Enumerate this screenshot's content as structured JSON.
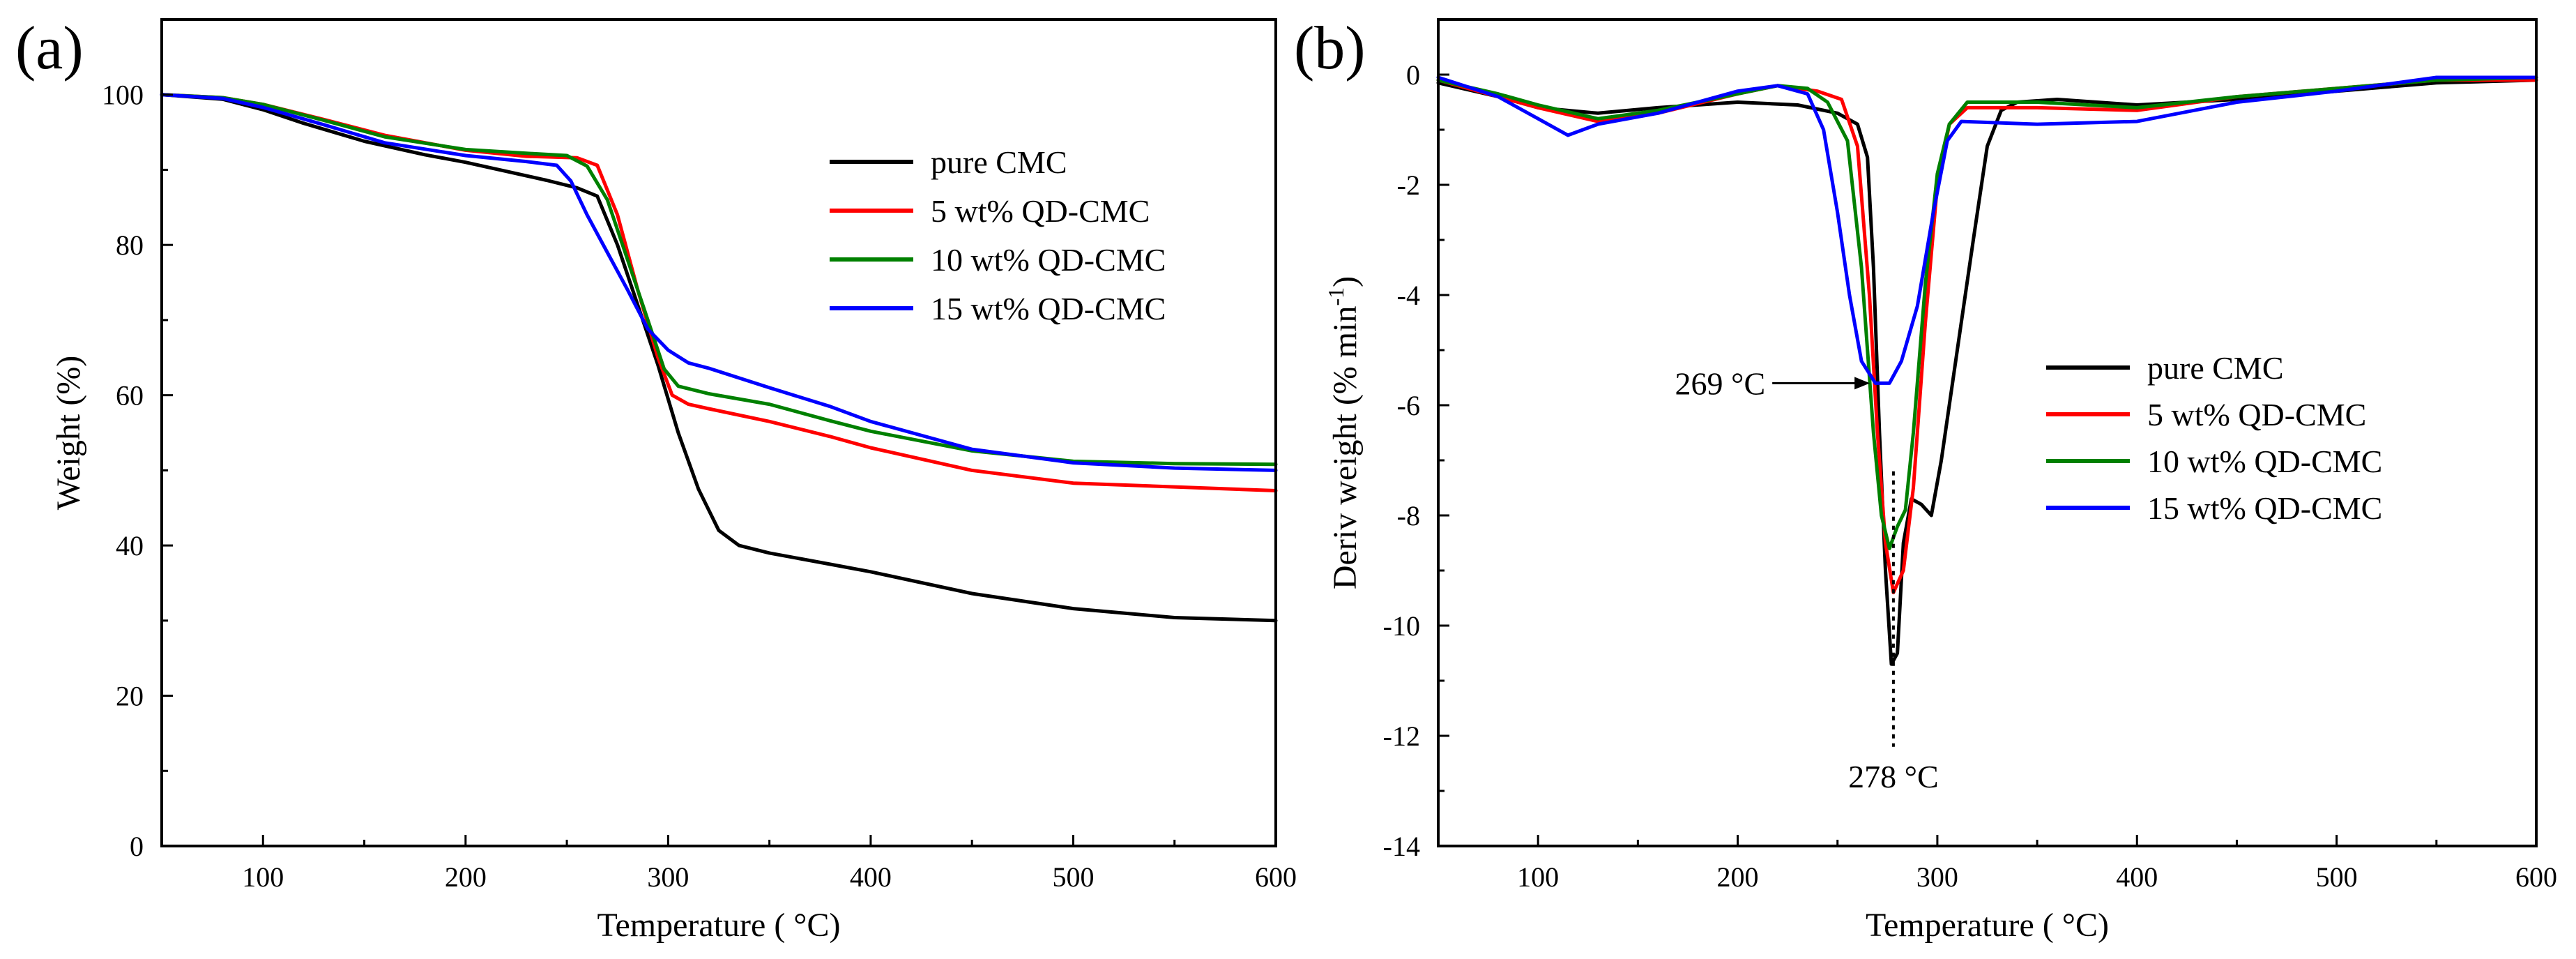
{
  "chart_data": [
    {
      "panel_label": "(a)",
      "type": "line",
      "title": "",
      "xlabel": "Temperature ( °C)",
      "ylabel": "Weight (%)",
      "xlim": [
        50,
        600
      ],
      "ylim": [
        0,
        110
      ],
      "x_ticks": [
        100,
        200,
        300,
        400,
        500,
        600
      ],
      "x_tick_labels": [
        "100",
        "200",
        "300",
        "400",
        "500",
        "600"
      ],
      "y_ticks": [
        0,
        20,
        40,
        60,
        80,
        100
      ],
      "y_tick_labels": [
        "0",
        "20",
        "40",
        "60",
        "80",
        "100"
      ],
      "legend_position": "center-right",
      "series": [
        {
          "name": "pure CMC",
          "color": "#000000",
          "points": [
            [
              50,
              100
            ],
            [
              80,
              99.4
            ],
            [
              100,
              98
            ],
            [
              120,
              96.2
            ],
            [
              150,
              93.8
            ],
            [
              180,
              92
            ],
            [
              200,
              91
            ],
            [
              220,
              89.8
            ],
            [
              240,
              88.6
            ],
            [
              255,
              87.6
            ],
            [
              265,
              86.5
            ],
            [
              275,
              80
            ],
            [
              285,
              72
            ],
            [
              295,
              64
            ],
            [
              305,
              55
            ],
            [
              315,
              47.5
            ],
            [
              325,
              42
            ],
            [
              335,
              40
            ],
            [
              350,
              39
            ],
            [
              380,
              37.5
            ],
            [
              400,
              36.5
            ],
            [
              450,
              33.6
            ],
            [
              500,
              31.6
            ],
            [
              550,
              30.4
            ],
            [
              600,
              30
            ]
          ]
        },
        {
          "name": "5 wt% QD-CMC",
          "color": "#ff0000",
          "points": [
            [
              50,
              100
            ],
            [
              80,
              99.6
            ],
            [
              100,
              98.7
            ],
            [
              130,
              96.7
            ],
            [
              160,
              94.6
            ],
            [
              200,
              92.6
            ],
            [
              230,
              91.8
            ],
            [
              255,
              91.6
            ],
            [
              265,
              90.6
            ],
            [
              275,
              84
            ],
            [
              285,
              74
            ],
            [
              295,
              65
            ],
            [
              302,
              60
            ],
            [
              310,
              58.8
            ],
            [
              320,
              58.2
            ],
            [
              350,
              56.5
            ],
            [
              380,
              54.5
            ],
            [
              400,
              53
            ],
            [
              450,
              50
            ],
            [
              500,
              48.3
            ],
            [
              550,
              47.8
            ],
            [
              600,
              47.3
            ]
          ]
        },
        {
          "name": "10 wt% QD-CMC",
          "color": "#008000",
          "points": [
            [
              50,
              100
            ],
            [
              80,
              99.6
            ],
            [
              100,
              98.7
            ],
            [
              130,
              96.6
            ],
            [
              160,
              94.4
            ],
            [
              200,
              92.7
            ],
            [
              230,
              92.2
            ],
            [
              250,
              91.9
            ],
            [
              260,
              90.5
            ],
            [
              270,
              86
            ],
            [
              280,
              78
            ],
            [
              290,
              70
            ],
            [
              298,
              63.5
            ],
            [
              305,
              61.2
            ],
            [
              320,
              60.2
            ],
            [
              350,
              58.8
            ],
            [
              380,
              56.6
            ],
            [
              400,
              55.2
            ],
            [
              450,
              52.6
            ],
            [
              500,
              51.2
            ],
            [
              550,
              50.9
            ],
            [
              600,
              50.8
            ]
          ]
        },
        {
          "name": "15 wt% QD-CMC",
          "color": "#0000ff",
          "points": [
            [
              50,
              100
            ],
            [
              80,
              99.5
            ],
            [
              100,
              98.3
            ],
            [
              130,
              96
            ],
            [
              160,
              93.6
            ],
            [
              200,
              91.9
            ],
            [
              230,
              91.1
            ],
            [
              245,
              90.6
            ],
            [
              252,
              88.5
            ],
            [
              260,
              84
            ],
            [
              270,
              79
            ],
            [
              280,
              74
            ],
            [
              290,
              68.8
            ],
            [
              300,
              66
            ],
            [
              310,
              64.3
            ],
            [
              320,
              63.6
            ],
            [
              350,
              61
            ],
            [
              380,
              58.5
            ],
            [
              400,
              56.5
            ],
            [
              450,
              52.8
            ],
            [
              500,
              51
            ],
            [
              550,
              50.3
            ],
            [
              600,
              50
            ]
          ]
        }
      ]
    },
    {
      "panel_label": "(b)",
      "type": "line",
      "title": "",
      "xlabel": "Temperature ( °C)",
      "ylabel": "Deriv weight (% min",
      "ylabel_superscript": "-1",
      "ylabel_close": ")",
      "xlim": [
        50,
        600
      ],
      "ylim": [
        -14,
        1
      ],
      "x_ticks": [
        100,
        200,
        300,
        400,
        500,
        600
      ],
      "x_tick_labels": [
        "100",
        "200",
        "300",
        "400",
        "500",
        "600"
      ],
      "y_ticks": [
        0,
        -2,
        -4,
        -6,
        -8,
        -10,
        -12,
        -14
      ],
      "y_tick_labels": [
        "0",
        "-2",
        "-4",
        "-6",
        "-8",
        "-10",
        "-12",
        "-14"
      ],
      "legend_position": "center-right",
      "annotations": [
        {
          "text": "269 °C",
          "at": [
            269,
            -5.6
          ],
          "kind": "arrow-left"
        },
        {
          "text": "278 °C",
          "at": [
            278,
            -10.8
          ],
          "kind": "dotted-vertical",
          "from_y": -7.2,
          "to_y": -12.2
        }
      ],
      "series": [
        {
          "name": "pure CMC",
          "color": "#000000",
          "points": [
            [
              50,
              -0.15
            ],
            [
              80,
              -0.4
            ],
            [
              100,
              -0.6
            ],
            [
              130,
              -0.7
            ],
            [
              160,
              -0.6
            ],
            [
              200,
              -0.5
            ],
            [
              230,
              -0.55
            ],
            [
              250,
              -0.7
            ],
            [
              260,
              -0.9
            ],
            [
              265,
              -1.5
            ],
            [
              268,
              -3.5
            ],
            [
              271,
              -6.5
            ],
            [
              274,
              -9
            ],
            [
              277,
              -10.7
            ],
            [
              280,
              -10.5
            ],
            [
              283,
              -8.5
            ],
            [
              287,
              -7.7
            ],
            [
              292,
              -7.8
            ],
            [
              297,
              -8
            ],
            [
              302,
              -7
            ],
            [
              310,
              -5
            ],
            [
              318,
              -3
            ],
            [
              325,
              -1.3
            ],
            [
              332,
              -0.65
            ],
            [
              340,
              -0.5
            ],
            [
              360,
              -0.45
            ],
            [
              400,
              -0.55
            ],
            [
              450,
              -0.45
            ],
            [
              500,
              -0.3
            ],
            [
              550,
              -0.15
            ],
            [
              600,
              -0.1
            ]
          ]
        },
        {
          "name": "5 wt% QD-CMC",
          "color": "#ff0000",
          "points": [
            [
              50,
              -0.1
            ],
            [
              80,
              -0.4
            ],
            [
              100,
              -0.6
            ],
            [
              130,
              -0.85
            ],
            [
              160,
              -0.7
            ],
            [
              200,
              -0.35
            ],
            [
              220,
              -0.2
            ],
            [
              240,
              -0.3
            ],
            [
              252,
              -0.45
            ],
            [
              260,
              -1.3
            ],
            [
              266,
              -4
            ],
            [
              270,
              -6.5
            ],
            [
              274,
              -8.5
            ],
            [
              278,
              -9.4
            ],
            [
              283,
              -9
            ],
            [
              288,
              -7.5
            ],
            [
              294,
              -4.5
            ],
            [
              300,
              -2
            ],
            [
              306,
              -0.9
            ],
            [
              315,
              -0.6
            ],
            [
              350,
              -0.6
            ],
            [
              400,
              -0.65
            ],
            [
              450,
              -0.4
            ],
            [
              500,
              -0.25
            ],
            [
              550,
              -0.1
            ],
            [
              600,
              -0.1
            ]
          ]
        },
        {
          "name": "10 wt% QD-CMC",
          "color": "#008000",
          "points": [
            [
              50,
              -0.1
            ],
            [
              80,
              -0.35
            ],
            [
              100,
              -0.55
            ],
            [
              130,
              -0.8
            ],
            [
              160,
              -0.65
            ],
            [
              200,
              -0.35
            ],
            [
              220,
              -0.2
            ],
            [
              235,
              -0.25
            ],
            [
              245,
              -0.5
            ],
            [
              255,
              -1.2
            ],
            [
              262,
              -3.5
            ],
            [
              268,
              -6.5
            ],
            [
              272,
              -8
            ],
            [
              276,
              -8.6
            ],
            [
              280,
              -8.2
            ],
            [
              284,
              -7.9
            ],
            [
              288,
              -6.5
            ],
            [
              294,
              -3.8
            ],
            [
              300,
              -1.8
            ],
            [
              306,
              -0.9
            ],
            [
              315,
              -0.5
            ],
            [
              350,
              -0.5
            ],
            [
              400,
              -0.6
            ],
            [
              450,
              -0.4
            ],
            [
              500,
              -0.25
            ],
            [
              550,
              -0.1
            ],
            [
              600,
              -0.05
            ]
          ]
        },
        {
          "name": "15 wt% QD-CMC",
          "color": "#0000ff",
          "points": [
            [
              50,
              -0.05
            ],
            [
              80,
              -0.4
            ],
            [
              100,
              -0.8
            ],
            [
              115,
              -1.1
            ],
            [
              130,
              -0.9
            ],
            [
              160,
              -0.7
            ],
            [
              200,
              -0.3
            ],
            [
              220,
              -0.2
            ],
            [
              235,
              -0.35
            ],
            [
              243,
              -1
            ],
            [
              250,
              -2.5
            ],
            [
              256,
              -4
            ],
            [
              262,
              -5.2
            ],
            [
              269,
              -5.6
            ],
            [
              276,
              -5.6
            ],
            [
              282,
              -5.2
            ],
            [
              290,
              -4.2
            ],
            [
              298,
              -2.5
            ],
            [
              305,
              -1.2
            ],
            [
              312,
              -0.85
            ],
            [
              350,
              -0.9
            ],
            [
              400,
              -0.85
            ],
            [
              450,
              -0.5
            ],
            [
              500,
              -0.3
            ],
            [
              550,
              -0.05
            ],
            [
              600,
              -0.05
            ]
          ]
        }
      ]
    }
  ]
}
